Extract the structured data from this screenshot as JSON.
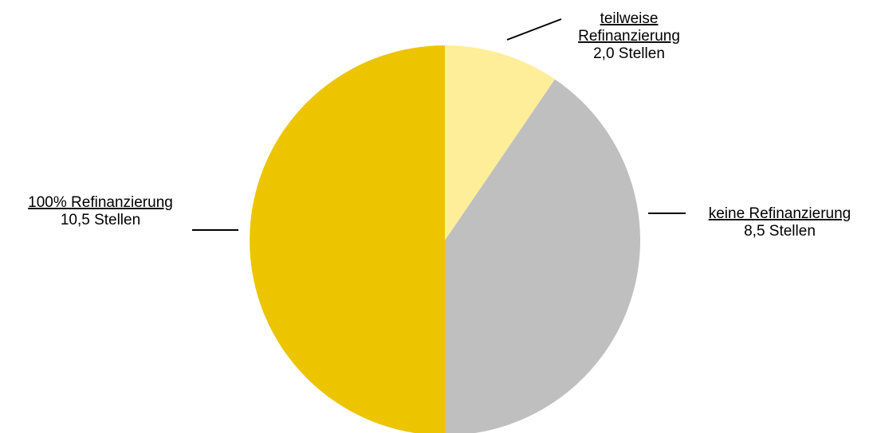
{
  "chart_data": {
    "type": "pie",
    "unit": "Stellen",
    "start_angle_deg": 0,
    "direction": "clockwise",
    "legend": "none",
    "slices": [
      {
        "name_lines": [
          "teilweise",
          "Refinanzierung"
        ],
        "value": 2.0,
        "value_label": "2,0 Stellen",
        "color": "#FFEE99"
      },
      {
        "name_lines": [
          "keine Refinanzierung"
        ],
        "value": 8.5,
        "value_label": "8,5 Stellen",
        "color": "#BFBFBF"
      },
      {
        "name_lines": [
          "100% Refinanzierung"
        ],
        "value": 10.5,
        "value_label": "10,5 Stellen",
        "color": "#ECC500"
      }
    ]
  }
}
